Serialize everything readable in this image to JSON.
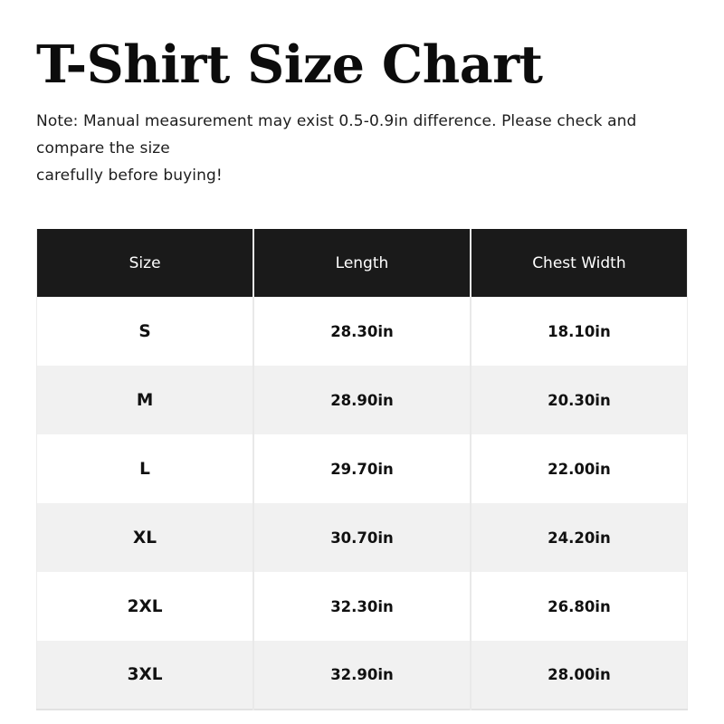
{
  "page": {
    "title": "T-Shirt Size Chart",
    "note_lines": [
      "Note: Manual measurement may exist 0.5-0.9in difference. Please check and compare the size",
      "carefully before buying!"
    ]
  },
  "colors": {
    "header_bg": "#1a1a1a",
    "header_text": "#ffffff",
    "row_alt_bg": "#f1f1f1",
    "divider": "#e9e9e9",
    "title_text": "#0c0c0c"
  },
  "chart_data": {
    "type": "table",
    "title": "T-Shirt Size Chart",
    "columns": [
      "Size",
      "Length",
      "Chest Width"
    ],
    "rows": [
      [
        "S",
        "28.30in",
        "18.10in"
      ],
      [
        "M",
        "28.90in",
        "20.30in"
      ],
      [
        "L",
        "29.70in",
        "22.00in"
      ],
      [
        "XL",
        "30.70in",
        "24.20in"
      ],
      [
        "2XL",
        "32.30in",
        "26.80in"
      ],
      [
        "3XL",
        "32.90in",
        "28.00in"
      ]
    ]
  }
}
